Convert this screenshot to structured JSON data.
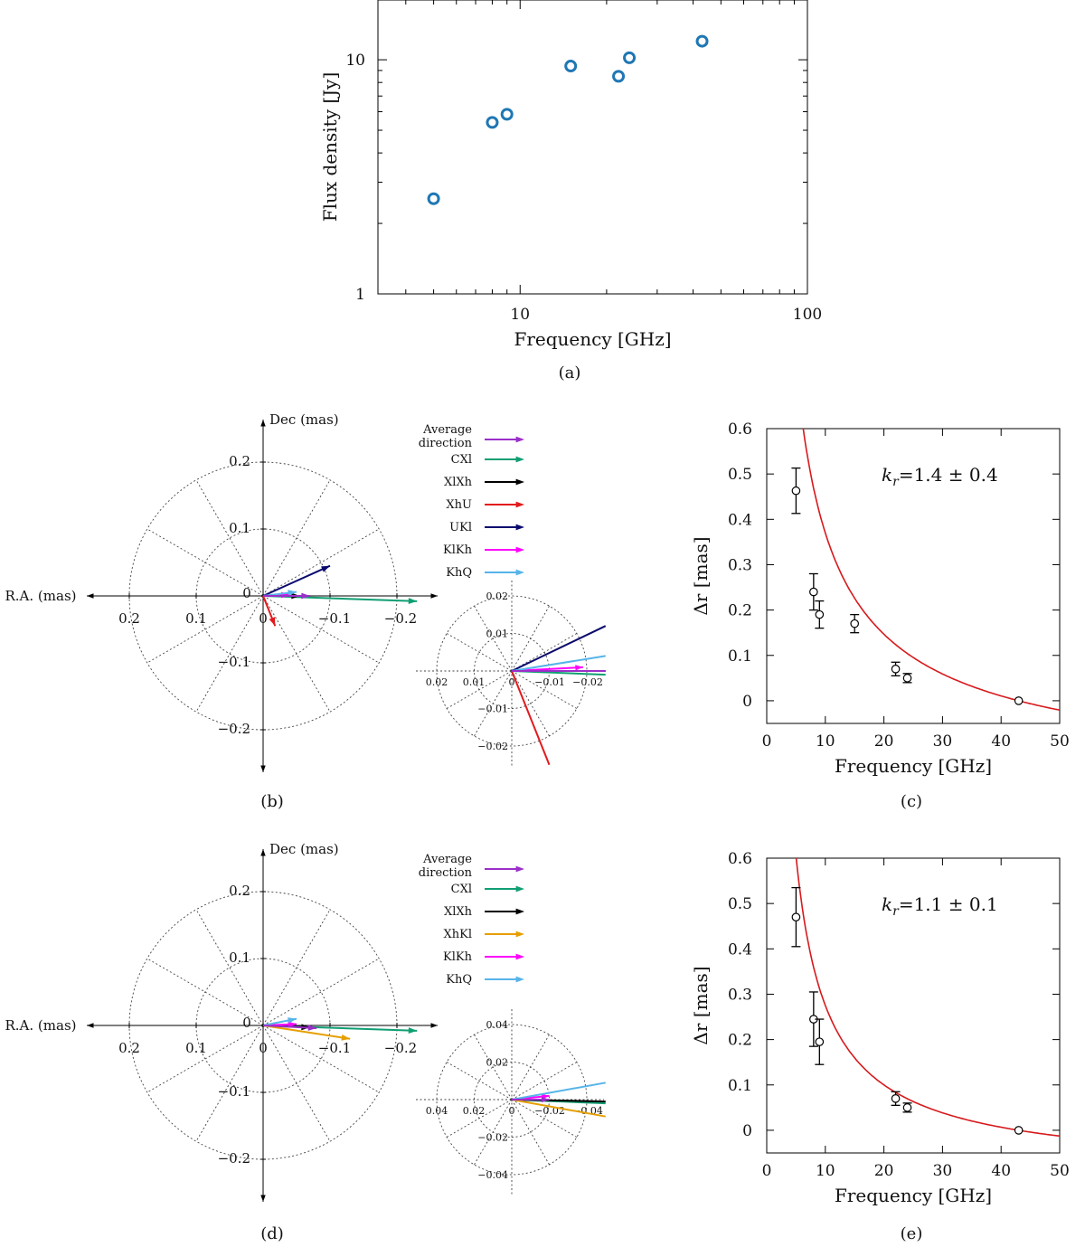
{
  "captions": [
    "(a)",
    "(b)",
    "(c)",
    "(d)",
    "(e)"
  ],
  "chart_data": [
    {
      "id": "a",
      "type": "scatter",
      "xlabel": "Frequency [GHz]",
      "ylabel": "Flux density [Jy]",
      "xscale": "log",
      "yscale": "log",
      "xlim": [
        3.2,
        100
      ],
      "ylim": [
        1,
        18
      ],
      "xticks": [
        {
          "v": 10,
          "label": "10"
        },
        {
          "v": 100,
          "label": "100"
        }
      ],
      "yticks": [
        {
          "v": 1,
          "label": "1"
        },
        {
          "v": 10,
          "label": "10"
        }
      ],
      "x": [
        5,
        8,
        9,
        15,
        22,
        24,
        43
      ],
      "y": [
        2.55,
        5.4,
        5.85,
        9.4,
        8.5,
        10.2,
        12.0
      ],
      "marker": "open-circle",
      "color": "#1f77b4"
    },
    {
      "id": "b",
      "type": "polar-vectors",
      "xlabel": "R.A. (mas)",
      "ylabel": "Dec (mas)",
      "xticklabels": [
        "0.2",
        "0.1",
        "0",
        "−0.1",
        "−0.2"
      ],
      "yticklabels": [
        "0.2",
        "0.1",
        "−0.1",
        "−0.2"
      ],
      "inset_ticks": [
        "0.02",
        "0.01",
        "0",
        "−0.01",
        "−0.02",
        "0.01",
        "−0.01",
        "−0.02",
        "0.02"
      ],
      "legend": [
        {
          "name": "Average direction",
          "lines": [
            "Average",
            "direction"
          ],
          "color": "#9b2fc9"
        },
        {
          "name": "CXl",
          "lines": [
            "CXl"
          ],
          "color": "#109e73"
        },
        {
          "name": "XlXh",
          "lines": [
            "XlXh"
          ],
          "color": "#000000"
        },
        {
          "name": "XhU",
          "lines": [
            "XhU"
          ],
          "color": "#e31a1c"
        },
        {
          "name": "UKl",
          "lines": [
            "UKl"
          ],
          "color": "#0a0a6e"
        },
        {
          "name": "KlKh",
          "lines": [
            "KlKh"
          ],
          "color": "#ff00ff"
        },
        {
          "name": "KhQ",
          "lines": [
            "KhQ"
          ],
          "color": "#56b4e9"
        }
      ],
      "vectors": [
        {
          "name": "CXl",
          "dx": -0.23,
          "dy": -0.008
        },
        {
          "name": "XlXh",
          "dx": -0.055,
          "dy": 0.0
        },
        {
          "name": "XhU",
          "dx": -0.018,
          "dy": -0.045
        },
        {
          "name": "UKl",
          "dx": -0.1,
          "dy": 0.045
        },
        {
          "name": "KlKh",
          "dx": -0.04,
          "dy": 0.002
        },
        {
          "name": "KhQ",
          "dx": -0.05,
          "dy": 0.006
        },
        {
          "name": "Average direction",
          "dx": -0.07,
          "dy": 0.0
        }
      ],
      "inset_vectors": [
        {
          "name": "CXl",
          "dx": -0.025,
          "dy": -0.001
        },
        {
          "name": "XlXh",
          "dx": -0.025,
          "dy": 0.0
        },
        {
          "name": "XhU",
          "dx": -0.01,
          "dy": -0.025
        },
        {
          "name": "UKl",
          "dx": -0.025,
          "dy": 0.012
        },
        {
          "name": "KlKh",
          "dx": -0.019,
          "dy": 0.001
        },
        {
          "name": "KhQ",
          "dx": -0.025,
          "dy": 0.004
        },
        {
          "name": "Average direction",
          "dx": -0.025,
          "dy": 0.0
        }
      ]
    },
    {
      "id": "c",
      "type": "scatter",
      "xlabel": "Frequency [GHz]",
      "ylabel": "Δr [mas]",
      "annotation": "k_r=1.4 ± 0.4",
      "annotation_main": "k",
      "annotation_sub": "r",
      "annotation_rest": "=1.4 ± 0.4",
      "xlim": [
        0,
        50
      ],
      "ylim": [
        -0.05,
        0.6
      ],
      "xticks": [
        0,
        10,
        20,
        30,
        40,
        50
      ],
      "yticks": [
        0,
        0.1,
        0.2,
        0.3,
        0.4,
        0.5,
        0.6
      ],
      "x": [
        5,
        8,
        9,
        15,
        22,
        24,
        43
      ],
      "y": [
        0.463,
        0.24,
        0.19,
        0.17,
        0.07,
        0.05,
        0.0
      ],
      "yerr": [
        0.05,
        0.04,
        0.03,
        0.02,
        0.015,
        0.01,
        0.0
      ],
      "fit": {
        "kr": 1.4,
        "A": 2.96,
        "f0": 43
      }
    },
    {
      "id": "d",
      "type": "polar-vectors",
      "xlabel": "R.A. (mas)",
      "ylabel": "Dec (mas)",
      "xticklabels": [
        "0.2",
        "0.1",
        "0",
        "−0.1",
        "−0.2"
      ],
      "yticklabels": [
        "0.2",
        "0.1",
        "−0.1",
        "−0.2"
      ],
      "inset_ticks": [
        "0.04",
        "0.02",
        "0",
        "−0.02",
        "−0.04",
        "0.02",
        "−0.02",
        "−0.04",
        "0.04"
      ],
      "legend": [
        {
          "name": "Average direction",
          "lines": [
            "Average",
            "direction"
          ],
          "color": "#9b2fc9"
        },
        {
          "name": "CXl",
          "lines": [
            "CXl"
          ],
          "color": "#109e73"
        },
        {
          "name": "XlXh",
          "lines": [
            "XlXh"
          ],
          "color": "#000000"
        },
        {
          "name": "XhKl",
          "lines": [
            "XhKl"
          ],
          "color": "#e69f00"
        },
        {
          "name": "KlKh",
          "lines": [
            "KlKh"
          ],
          "color": "#ff00ff"
        },
        {
          "name": "KhQ",
          "lines": [
            "KhQ"
          ],
          "color": "#56b4e9"
        }
      ],
      "vectors": [
        {
          "name": "CXl",
          "dx": -0.23,
          "dy": -0.008
        },
        {
          "name": "XlXh",
          "dx": -0.07,
          "dy": -0.003
        },
        {
          "name": "XhKl",
          "dx": -0.13,
          "dy": -0.02
        },
        {
          "name": "KlKh",
          "dx": -0.05,
          "dy": 0.002
        },
        {
          "name": "KhQ",
          "dx": -0.05,
          "dy": 0.01
        },
        {
          "name": "Average direction",
          "dx": -0.08,
          "dy": -0.004
        }
      ],
      "inset_vectors": [
        {
          "name": "CXl",
          "dx": -0.05,
          "dy": -0.002
        },
        {
          "name": "XlXh",
          "dx": -0.05,
          "dy": -0.001
        },
        {
          "name": "XhKl",
          "dx": -0.05,
          "dy": -0.009
        },
        {
          "name": "KlKh",
          "dx": -0.02,
          "dy": 0.002
        },
        {
          "name": "KhQ",
          "dx": -0.05,
          "dy": 0.009
        },
        {
          "name": "Average direction",
          "dx": -0.02,
          "dy": 0.0
        }
      ]
    },
    {
      "id": "e",
      "type": "scatter",
      "xlabel": "Frequency [GHz]",
      "ylabel": "Δr [mas]",
      "annotation": "k_r=1.1 ± 0.1",
      "annotation_main": "k",
      "annotation_sub": "r",
      "annotation_rest": "=1.1 ± 0.1",
      "xlim": [
        0,
        50
      ],
      "ylim": [
        -0.05,
        0.6
      ],
      "xticks": [
        0,
        10,
        20,
        30,
        40,
        50
      ],
      "yticks": [
        0,
        0.1,
        0.2,
        0.3,
        0.4,
        0.5,
        0.6
      ],
      "x": [
        5,
        8,
        9,
        22,
        24,
        43
      ],
      "y": [
        0.47,
        0.245,
        0.195,
        0.07,
        0.05,
        0.0
      ],
      "yerr": [
        0.065,
        0.06,
        0.05,
        0.015,
        0.01,
        0.0
      ],
      "fit": {
        "kr": 1.1,
        "A": 3.04,
        "f0": 43
      }
    }
  ]
}
